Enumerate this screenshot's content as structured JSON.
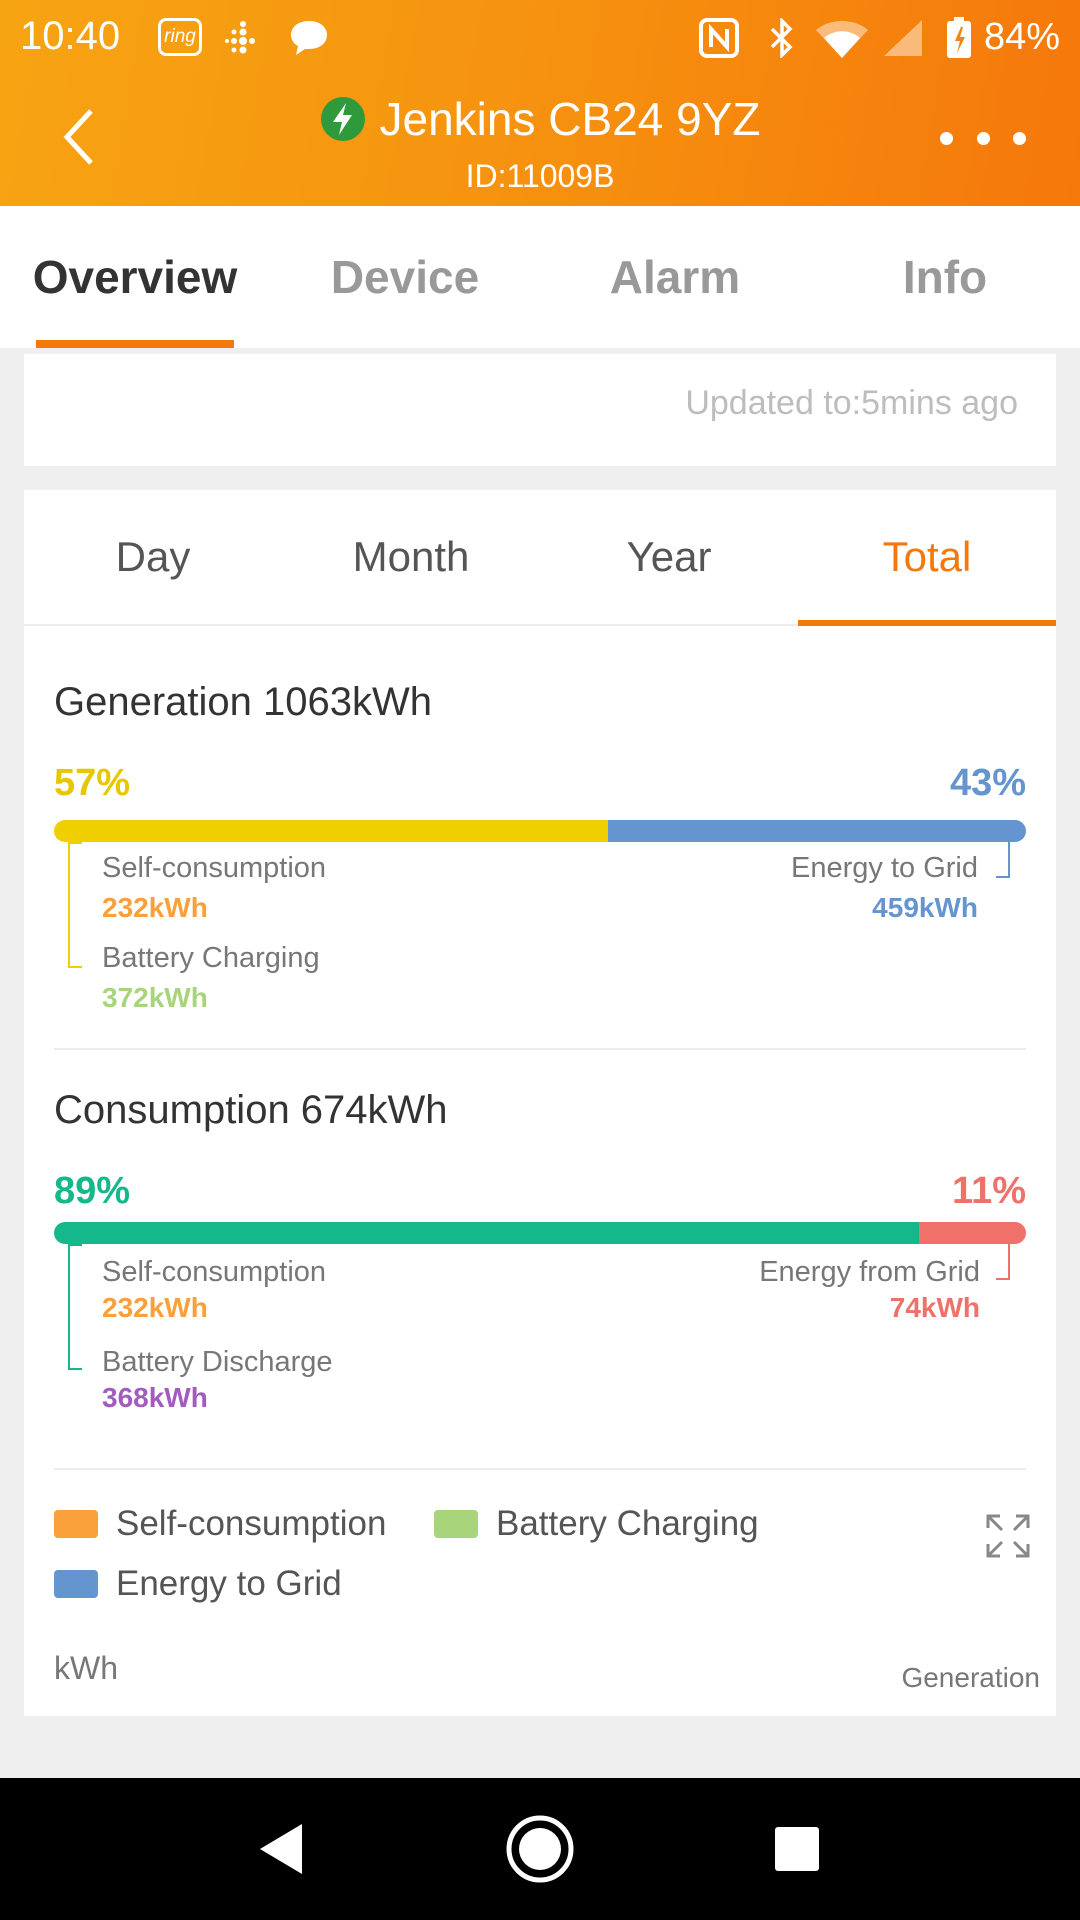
{
  "status_bar": {
    "time": "10:40",
    "ring_label": "ring",
    "battery_pct": "84%"
  },
  "header": {
    "title": "Jenkins CB24 9YZ",
    "subtitle": "ID:11009B"
  },
  "main_tabs": [
    {
      "label": "Overview",
      "active": true
    },
    {
      "label": "Device",
      "active": false
    },
    {
      "label": "Alarm",
      "active": false
    },
    {
      "label": "Info",
      "active": false
    }
  ],
  "updated_text": "Updated to:5mins ago",
  "period_tabs": [
    {
      "label": "Day",
      "active": false
    },
    {
      "label": "Month",
      "active": false
    },
    {
      "label": "Year",
      "active": false
    },
    {
      "label": "Total",
      "active": true
    }
  ],
  "generation": {
    "title": "Generation 1063kWh",
    "left_pct": "57%",
    "right_pct": "43%",
    "left_fraction": 0.57,
    "left_color": "#f0cf00",
    "right_color": "#6495cf",
    "self_label": "Self-consumption",
    "self_value": "232kWh",
    "battery_label": "Battery Charging",
    "battery_value": "372kWh",
    "grid_label": "Energy to Grid",
    "grid_value": "459kWh"
  },
  "consumption": {
    "title": "Consumption 674kWh",
    "left_pct": "89%",
    "right_pct": "11%",
    "left_fraction": 0.89,
    "left_color": "#14b88a",
    "right_color": "#f0706a",
    "self_label": "Self-consumption",
    "self_value": "232kWh",
    "battery_label": "Battery Discharge",
    "battery_value": "368kWh",
    "grid_label": "Energy from Grid",
    "grid_value": "74kWh"
  },
  "colors": {
    "accent": "#f5780b",
    "self_consumption": "#f9a03a",
    "battery_charging": "#a8d47c",
    "energy_to_grid": "#6495cf",
    "battery_discharge": "#a25cc0"
  },
  "legend": [
    {
      "label": "Self-consumption",
      "color": "#f9a03a"
    },
    {
      "label": "Battery Charging",
      "color": "#a8d47c"
    },
    {
      "label": "Energy to Grid",
      "color": "#6495cf"
    }
  ],
  "chart": {
    "unit": "kWh",
    "series_label": "Generation"
  },
  "icons": {
    "back": "chevron-left-icon",
    "plant": "lightning-bolt-icon",
    "more": "more-horizontal-icon",
    "expand": "expand-icon"
  }
}
